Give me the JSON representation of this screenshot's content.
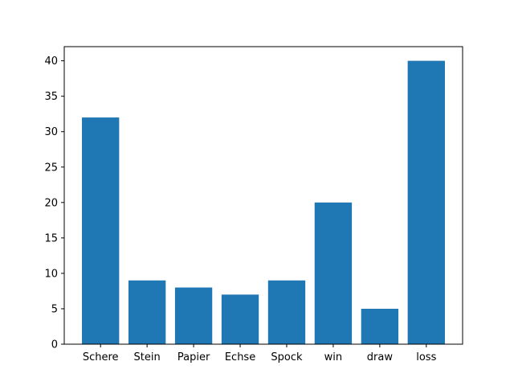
{
  "chart_data": {
    "type": "bar",
    "categories": [
      "Schere",
      "Stein",
      "Papier",
      "Echse",
      "Spock",
      "win",
      "draw",
      "loss"
    ],
    "values": [
      32,
      9,
      8,
      7,
      9,
      20,
      5,
      40
    ],
    "title": "",
    "xlabel": "",
    "ylabel": "",
    "ylim": [
      0,
      42
    ],
    "yticks": [
      0,
      5,
      10,
      15,
      20,
      25,
      30,
      35,
      40
    ],
    "bar_color": "#1f77b4",
    "grid": false
  }
}
